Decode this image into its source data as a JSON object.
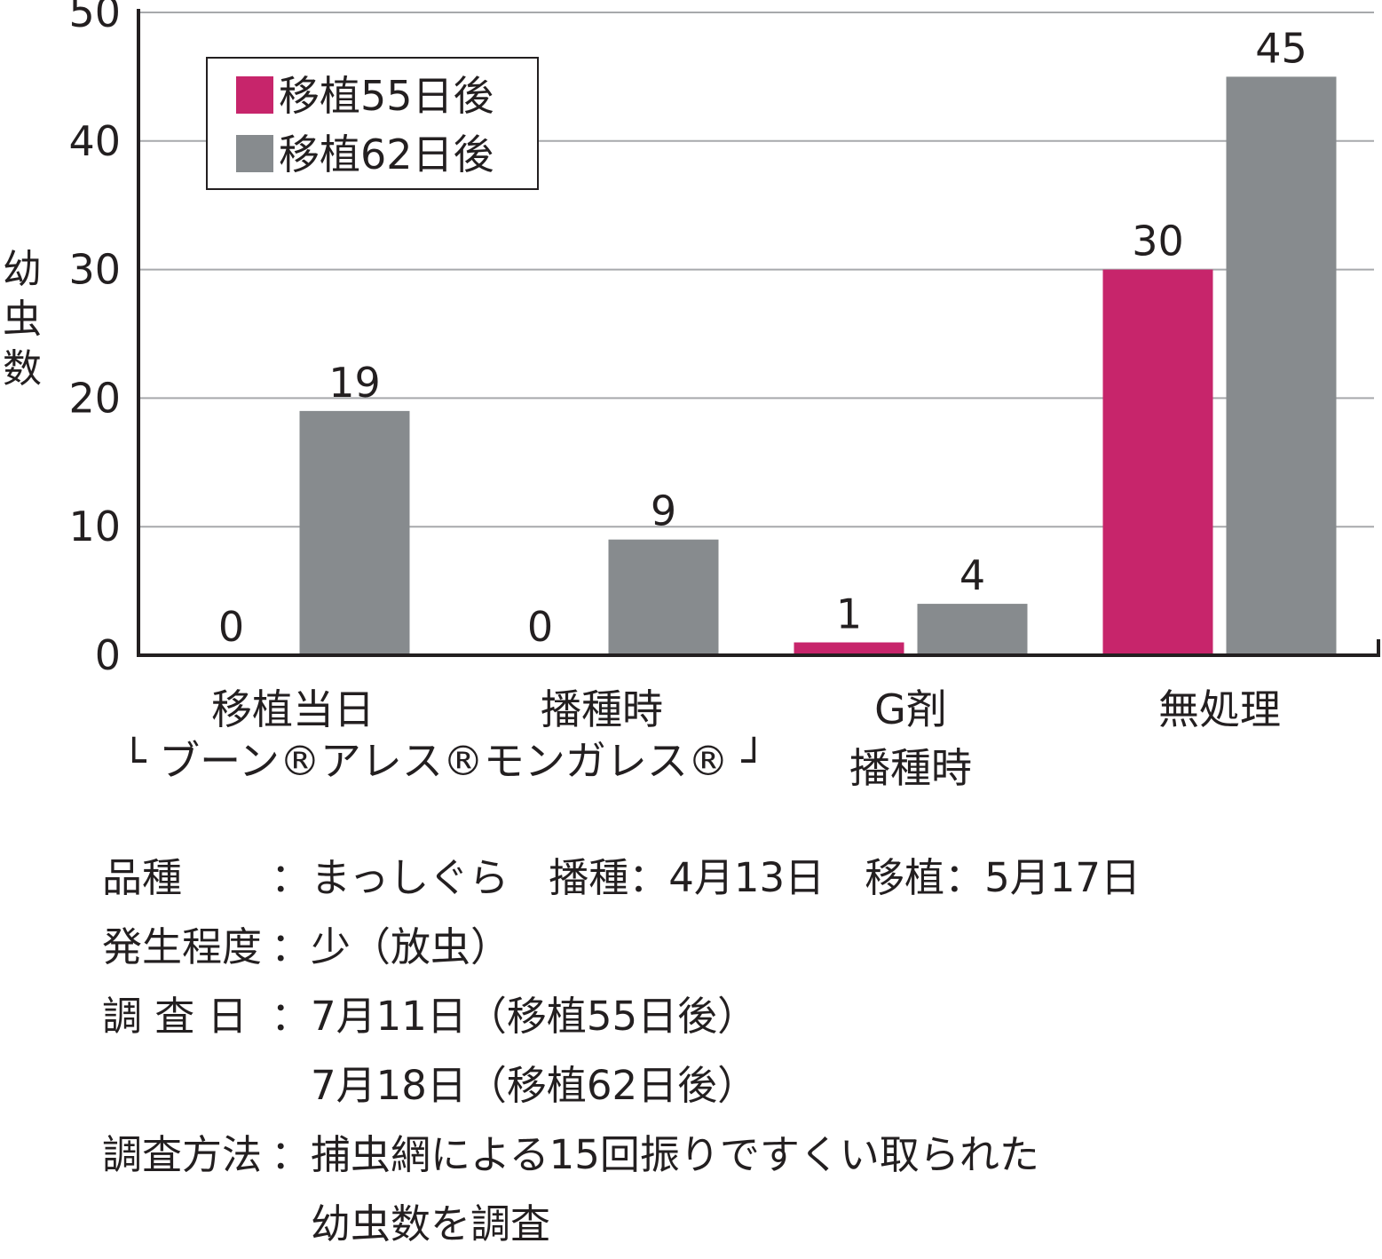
{
  "chart_data": {
    "type": "bar",
    "ylabel": "幼虫数",
    "ylim": [
      0,
      50
    ],
    "yticks": [
      0,
      10,
      20,
      30,
      40,
      50
    ],
    "grid": true,
    "legend_position": "top-left",
    "categories": [
      {
        "lines": [
          "移植当日"
        ]
      },
      {
        "lines": [
          "播種時"
        ]
      },
      {
        "lines": [
          "G剤",
          "播種時"
        ]
      },
      {
        "lines": [
          "無処理"
        ]
      }
    ],
    "group_label": "└ ブーン®アレス®モンガレス® ┘",
    "series": [
      {
        "name": "移植55日後",
        "color": "#c7256b",
        "values": [
          0,
          0,
          1,
          30
        ]
      },
      {
        "name": "移植62日後",
        "color": "#878b8e",
        "values": [
          19,
          9,
          4,
          45
        ]
      }
    ]
  },
  "notes": [
    {
      "label": "品種",
      "lines": [
        "まっしぐら　播種：4月13日　移植：5月17日"
      ]
    },
    {
      "label": "発生程度",
      "lines": [
        "少（放虫）"
      ]
    },
    {
      "label": "調 査 日",
      "lines": [
        "7月11日（移植55日後）",
        "7月18日（移植62日後）"
      ]
    },
    {
      "label": "調査方法",
      "lines": [
        "捕虫網による15回振りですくい取られた",
        "幼虫数を調査"
      ]
    }
  ]
}
